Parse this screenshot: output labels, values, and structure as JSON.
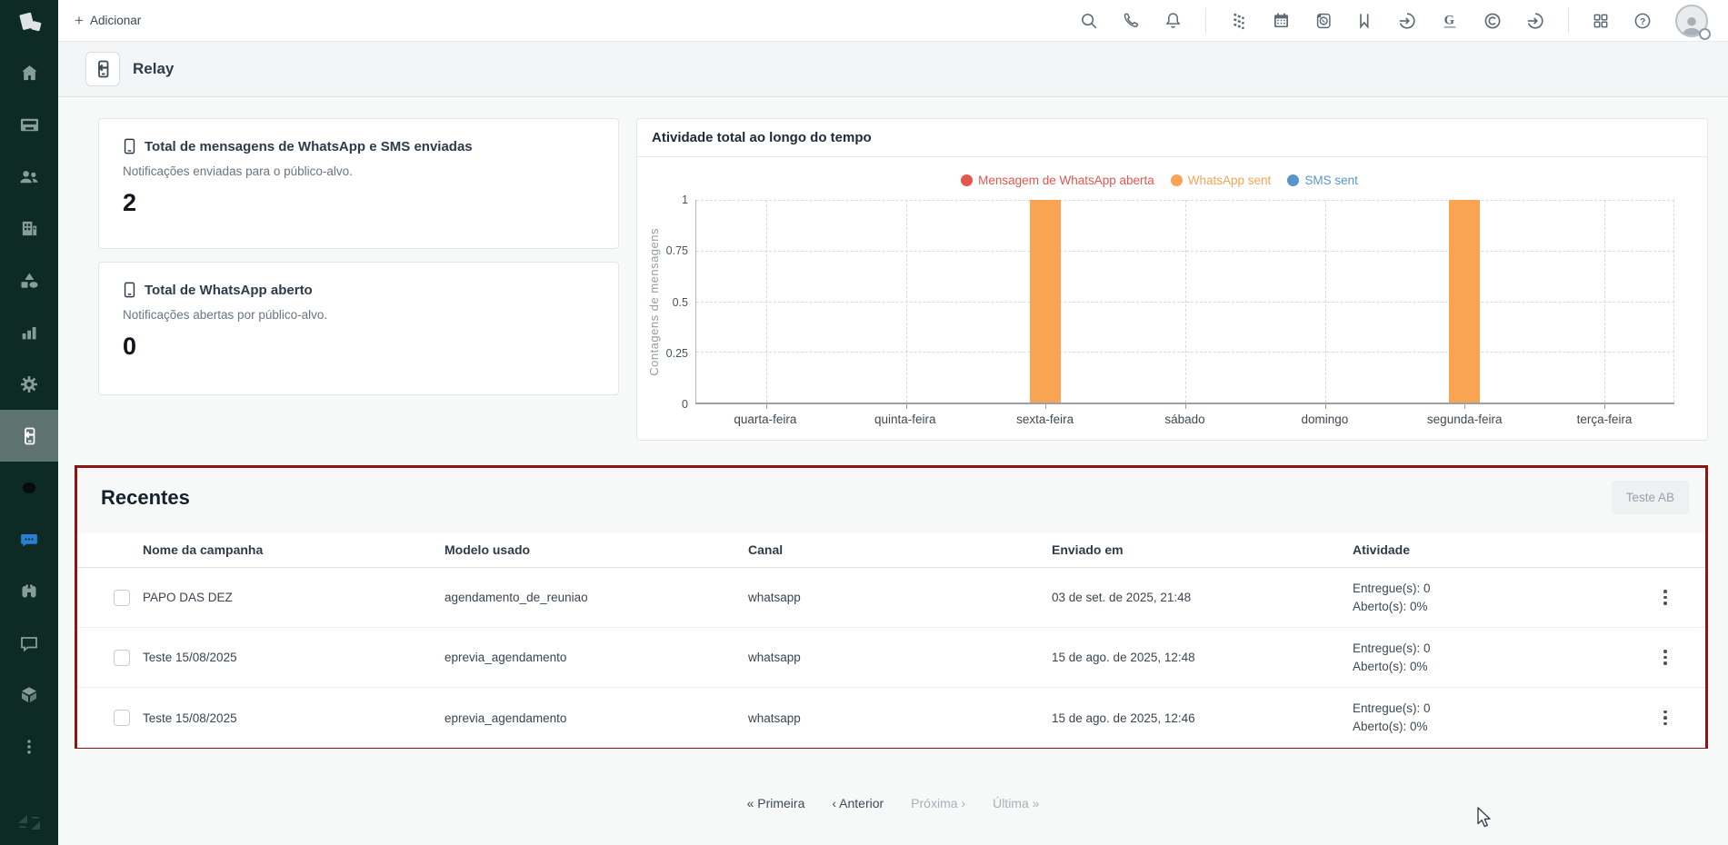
{
  "sidebar": {
    "items": [
      {
        "name": "home"
      },
      {
        "name": "inbox"
      },
      {
        "name": "contacts"
      },
      {
        "name": "companies"
      },
      {
        "name": "products"
      },
      {
        "name": "reports"
      },
      {
        "name": "settings"
      },
      {
        "name": "relay",
        "active": true
      },
      {
        "name": "dark-circle"
      },
      {
        "name": "chat"
      },
      {
        "name": "prospecting"
      },
      {
        "name": "feedback"
      },
      {
        "name": "integrations"
      },
      {
        "name": "more"
      }
    ],
    "colors": {
      "background": "#0d2a25",
      "icon": "#879d96",
      "active_bg": "#5e7370",
      "chat_blue": "#2a7fd0"
    }
  },
  "topbar": {
    "plus": "+",
    "add_label": "Adicionar",
    "icons": [
      "search-icon",
      "phone-icon",
      "notifications-icon",
      "pattern-icon",
      "calendar-icon",
      "whatsapp-contacts-icon",
      "w-bookmark-icon",
      "sign-in-icon",
      "g-letter-icon",
      "copyright-icon",
      "sign-in-alt-icon",
      "apps-grid-icon",
      "help-icon",
      "avatar"
    ]
  },
  "subbar": {
    "title": "Relay",
    "icon": "relay-phone-icon"
  },
  "cards": [
    {
      "title": "Total de mensagens de WhatsApp e SMS enviadas",
      "subtitle": "Notificações enviadas para o público-alvo.",
      "value": "2"
    },
    {
      "title": "Total de WhatsApp aberto",
      "subtitle": "Notificações abertas por público-alvo.",
      "value": "0"
    }
  ],
  "chart_data": {
    "type": "bar",
    "title": "Atividade total ao longo do tempo",
    "categories": [
      "quarta-feira",
      "quinta-feira",
      "sexta-feira",
      "sábado",
      "domingo",
      "segunda-feira",
      "terça-feira"
    ],
    "series": [
      {
        "name": "Mensagem de WhatsApp aberta",
        "color": "#e2574c",
        "values": [
          0,
          0,
          0,
          0,
          0,
          0,
          0
        ]
      },
      {
        "name": "WhatsApp sent",
        "color": "#f8a452",
        "values": [
          0,
          0,
          1,
          0,
          0,
          1,
          0
        ]
      },
      {
        "name": "SMS sent",
        "color": "#5a94ce",
        "values": [
          0,
          0,
          0,
          0,
          0,
          0,
          0
        ]
      }
    ],
    "ylabel": "Contagens de mensagens",
    "xlabel": "",
    "ylim": [
      0,
      1
    ],
    "yticks": [
      "1",
      "0.75",
      "0.5",
      "0.25",
      "0"
    ],
    "grid": true,
    "legend_position": "top"
  },
  "recents": {
    "title": "Recentes",
    "ab_button": "Teste AB",
    "highlight_border_color": "#8e1414",
    "table": {
      "headers": [
        "Nome da campanha",
        "Modelo usado",
        "Canal",
        "Enviado em",
        "Atividade"
      ],
      "rows": [
        {
          "name": "PAPO DAS DEZ",
          "model": "agendamento_de_reuniao",
          "channel": "whatsapp",
          "sent_at": "03 de set. de 2025, 21:48",
          "delivered": "Entregue(s): 0",
          "opened": "Aberto(s): 0%"
        },
        {
          "name": "Teste 15/08/2025",
          "model": "eprevia_agendamento",
          "channel": "whatsapp",
          "sent_at": "15 de ago. de 2025, 12:48",
          "delivered": "Entregue(s): 0",
          "opened": "Aberto(s): 0%"
        },
        {
          "name": "Teste 15/08/2025",
          "model": "eprevia_agendamento",
          "channel": "whatsapp",
          "sent_at": "15 de ago. de 2025, 12:46",
          "delivered": "Entregue(s): 0",
          "opened": "Aberto(s): 0%"
        }
      ]
    }
  },
  "pagination": {
    "first": "« Primeira",
    "prev": "‹ Anterior",
    "next": "Próxima ›",
    "last": "Última »"
  }
}
